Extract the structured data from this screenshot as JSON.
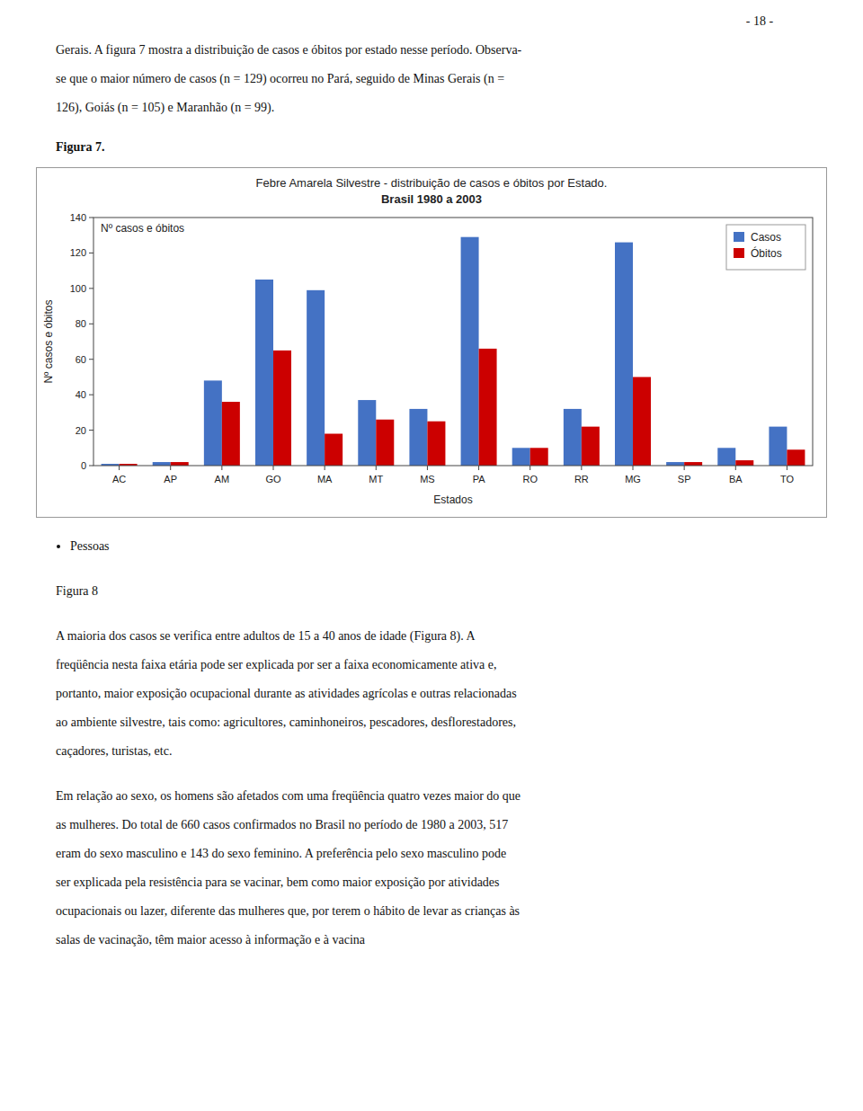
{
  "chart_data": {
    "type": "bar",
    "title": "Febre Amarela Silvestre - distribuição de casos e óbitos por Estado.",
    "subtitle": "Brasil 1980 a 2003",
    "x_label": "Estados",
    "y_label": "Nº casos e óbitos",
    "categories": [
      "AC",
      "AP",
      "AM",
      "GO",
      "MA",
      "MT",
      "MS",
      "PA",
      "RO",
      "RR",
      "MG",
      "SP",
      "BA",
      "TO"
    ],
    "series": [
      {
        "name": "Casos",
        "color": "#4472C4",
        "values": [
          1,
          2,
          48,
          105,
          99,
          37,
          32,
          129,
          10,
          32,
          126,
          2,
          10,
          22
        ]
      },
      {
        "name": "Óbitos",
        "color": "#CC0000",
        "values": [
          1,
          2,
          36,
          65,
          18,
          26,
          25,
          66,
          10,
          22,
          50,
          2,
          3,
          9
        ]
      }
    ],
    "ylim": [
      0,
      140
    ],
    "yticks": [
      0,
      20,
      40,
      60,
      80,
      100,
      120,
      140
    ],
    "grid": false,
    "legend": "upper right"
  },
  "page_text": {
    "page_number": "- 18 -",
    "intro": [
      "Gerais. A figura 7 mostra a distribuição de casos e óbitos por estado nesse período. Observa-",
      "se que o maior número de casos (n = 129) ocorreu no Pará, seguido de Minas Gerais (n =",
      "126), Goiás (n = 105) e Maranhão (n = 99)."
    ],
    "figure_7_label": "Figura 7.",
    "bullet": "Pessoas",
    "figure_8_label": "Figura 8",
    "paragraphs": [
      [
        "A maioria dos casos se verifica entre adultos de 15 a 40 anos de idade (Figura 8). A",
        "freqüência nesta faixa etária pode ser explicada por ser a faixa economicamente ativa e,",
        "portanto, maior exposição ocupacional durante as atividades agrícolas e outras relacionadas",
        "ao ambiente silvestre, tais como: agricultores, caminhoneiros, pescadores, desflorestadores,",
        "caçadores, turistas, etc."
      ],
      [
        "Em relação ao sexo, os homens são afetados com uma freqüência quatro vezes maior do que",
        "as mulheres. Do total de 660 casos confirmados no Brasil no período de 1980 a 2003, 517",
        "eram do sexo masculino e 143 do sexo feminino. A preferência pelo sexo masculino pode",
        "ser explicada pela resistência para se vacinar, bem como maior exposição por atividades",
        "ocupacionais ou lazer, diferente das mulheres que, por terem o hábito de levar as crianças às",
        "salas de vacinação, têm maior acesso à informação e à vacina"
      ]
    ]
  }
}
